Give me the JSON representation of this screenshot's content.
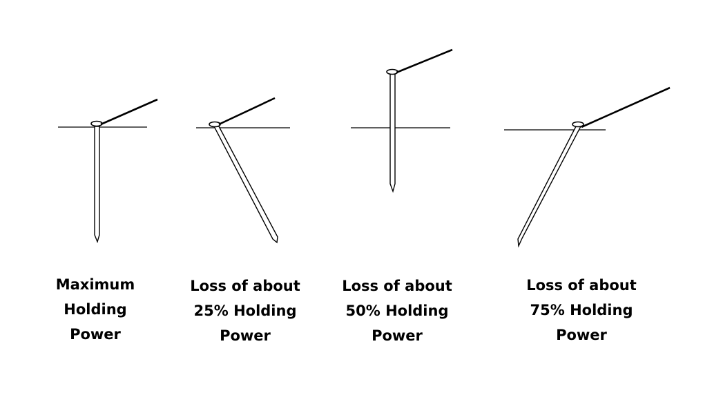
{
  "colors": {
    "ink": "#000000",
    "nail_fill": "#ffffff",
    "background": "#ffffff"
  },
  "panels": [
    {
      "id": "vertical",
      "caption_lines": [
        "Maximum",
        "Holding",
        "Power"
      ]
    },
    {
      "id": "angled-small",
      "caption_lines": [
        "Loss of about",
        "25% Holding",
        "Power"
      ]
    },
    {
      "id": "raised",
      "caption_lines": [
        "Loss of about",
        "50% Holding",
        "Power"
      ]
    },
    {
      "id": "angled-large",
      "caption_lines": [
        "Loss of about",
        "75% Holding",
        "Power"
      ]
    }
  ]
}
